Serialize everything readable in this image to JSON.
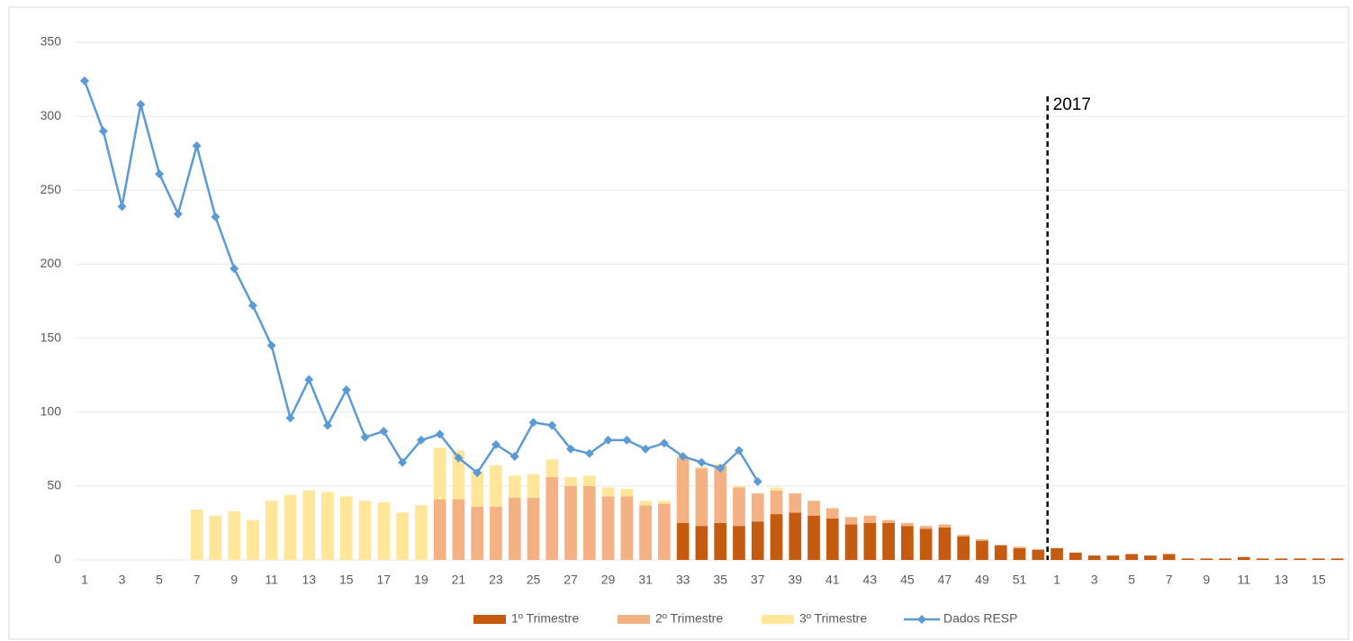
{
  "chart_data": {
    "type": "bar",
    "categories": [
      1,
      null,
      3,
      null,
      5,
      null,
      7,
      null,
      9,
      null,
      11,
      null,
      13,
      null,
      15,
      null,
      17,
      null,
      19,
      null,
      21,
      null,
      23,
      null,
      25,
      null,
      27,
      null,
      29,
      null,
      31,
      null,
      33,
      null,
      35,
      null,
      37,
      null,
      39,
      null,
      41,
      null,
      43,
      null,
      45,
      null,
      47,
      null,
      49,
      null,
      51,
      null,
      1,
      null,
      3,
      null,
      5,
      null,
      7,
      null,
      9,
      null,
      11,
      null,
      13,
      null,
      15,
      null
    ],
    "series": [
      {
        "name": "1º Trimestre",
        "type": "bar",
        "color": "#c55a11",
        "values": [
          0,
          0,
          0,
          0,
          0,
          0,
          0,
          0,
          0,
          0,
          0,
          0,
          0,
          0,
          0,
          0,
          0,
          0,
          0,
          0,
          0,
          0,
          0,
          0,
          0,
          0,
          0,
          0,
          0,
          0,
          0,
          0,
          25,
          23,
          25,
          23,
          26,
          31,
          32,
          30,
          28,
          24,
          25,
          25,
          23,
          21,
          22,
          16,
          13,
          10,
          8,
          7,
          8,
          5,
          3,
          3,
          4,
          3,
          4,
          1,
          1,
          1,
          2,
          1,
          1,
          1,
          1,
          1
        ]
      },
      {
        "name": "2º Trimestre",
        "type": "bar",
        "color": "#f4b183",
        "values": [
          0,
          0,
          0,
          0,
          0,
          0,
          0,
          0,
          0,
          0,
          0,
          0,
          0,
          0,
          0,
          0,
          0,
          0,
          0,
          41,
          41,
          36,
          36,
          42,
          42,
          56,
          50,
          50,
          43,
          43,
          37,
          38,
          44,
          39,
          39,
          26,
          19,
          16,
          13,
          10,
          7,
          5,
          5,
          2,
          2,
          2,
          2,
          1,
          1,
          0,
          1,
          0,
          0,
          0,
          0,
          0,
          0,
          0,
          0,
          0,
          0,
          0,
          0,
          0,
          0,
          0,
          0,
          0
        ]
      },
      {
        "name": "3º Trimestre",
        "type": "bar",
        "color": "#ffe699",
        "values": [
          0,
          0,
          0,
          0,
          0,
          0,
          34,
          30,
          33,
          27,
          40,
          44,
          47,
          46,
          43,
          40,
          39,
          32,
          37,
          35,
          33,
          24,
          28,
          15,
          16,
          12,
          6,
          7,
          6,
          5,
          3,
          2,
          1,
          1,
          1,
          1,
          0,
          2,
          0,
          0,
          0,
          0,
          0,
          0,
          0,
          0,
          0,
          0,
          0,
          0,
          0,
          0,
          0,
          0,
          0,
          0,
          0,
          0,
          0,
          0,
          0,
          0,
          0,
          0,
          0,
          0,
          0,
          0
        ]
      },
      {
        "name": "Dados RESP",
        "type": "line",
        "color": "#5b9bd5",
        "values": [
          324,
          290,
          239,
          308,
          261,
          234,
          280,
          232,
          197,
          172,
          145,
          96,
          122,
          91,
          115,
          83,
          87,
          66,
          81,
          85,
          69,
          59,
          78,
          70,
          93,
          91,
          75,
          72,
          81,
          81,
          75,
          79,
          70,
          66,
          62,
          74,
          53,
          null,
          null,
          null,
          null,
          null,
          null,
          null,
          null,
          null,
          null,
          null,
          null,
          null,
          null,
          null,
          null,
          null,
          null,
          null,
          null,
          null,
          null,
          null,
          null,
          null,
          null,
          null,
          null,
          null,
          null,
          null
        ]
      }
    ],
    "annotation": "2017",
    "ylim": [
      0,
      350
    ],
    "yticks": [
      0,
      50,
      100,
      150,
      200,
      250,
      300,
      350
    ],
    "grid": true,
    "legend": "bottom"
  }
}
